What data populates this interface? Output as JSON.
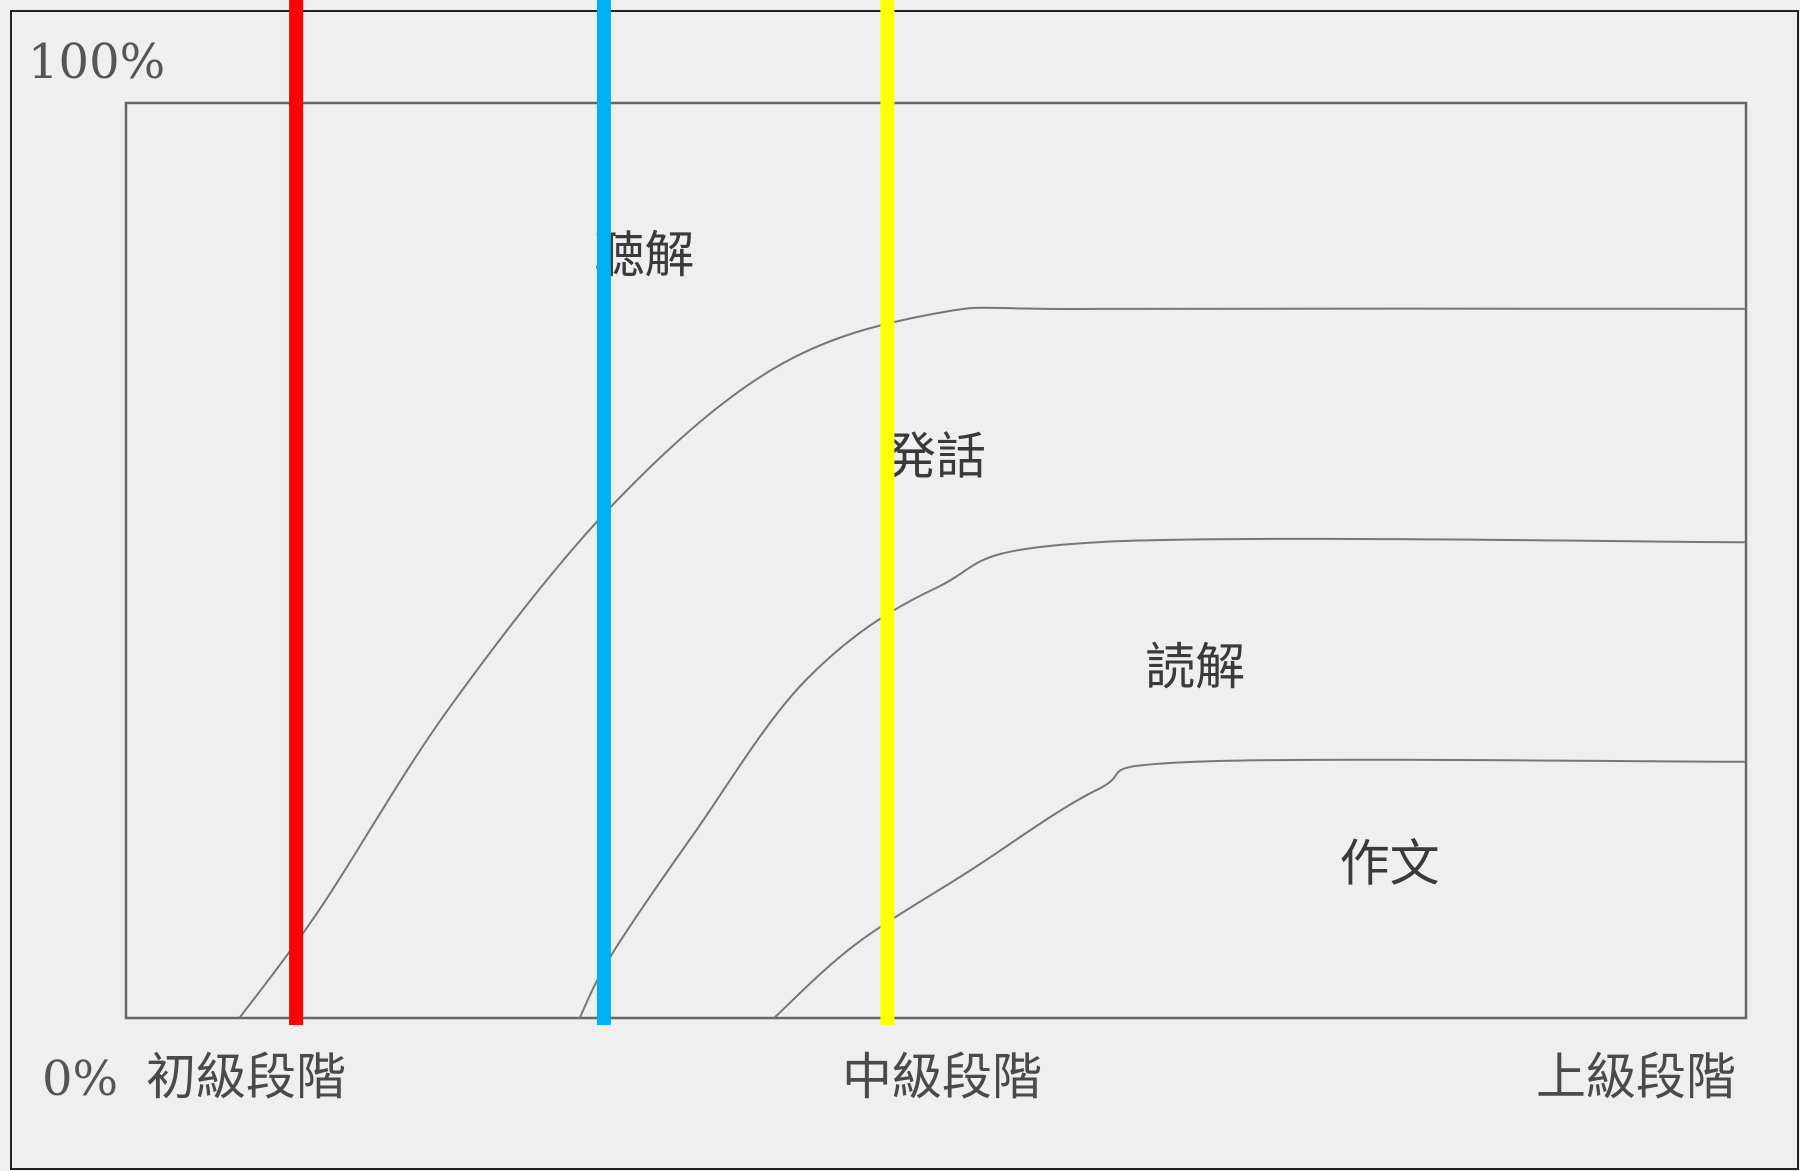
{
  "chart_data": {
    "type": "area",
    "x_range": [
      0,
      100
    ],
    "y_range": [
      0,
      100
    ],
    "y_tick_labels": [
      {
        "label": "0%",
        "value": 0
      },
      {
        "label": "100%",
        "value": 100
      }
    ],
    "x_tick_labels": [
      {
        "label": "初級段階",
        "value": 7
      },
      {
        "label": "中級段階",
        "value": 50
      },
      {
        "label": "上級段階",
        "value": 93
      }
    ],
    "series": [
      {
        "name": "聴解",
        "upper": 100
      },
      {
        "name": "発話",
        "upper_curve": [
          [
            7,
            0
          ],
          [
            12,
            12
          ],
          [
            20,
            34
          ],
          [
            30,
            56
          ],
          [
            40,
            71
          ],
          [
            50,
            77
          ],
          [
            60,
            77.5
          ],
          [
            100,
            77.5
          ]
        ]
      },
      {
        "name": "読解",
        "upper_curve": [
          [
            28,
            0
          ],
          [
            30,
            7
          ],
          [
            35,
            20
          ],
          [
            42,
            37
          ],
          [
            50,
            47
          ],
          [
            60,
            52
          ],
          [
            100,
            52
          ]
        ]
      },
      {
        "name": "作文",
        "upper_curve": [
          [
            40,
            0
          ],
          [
            45,
            8
          ],
          [
            52,
            16
          ],
          [
            60,
            25
          ],
          [
            66,
            28
          ],
          [
            100,
            28
          ]
        ]
      }
    ],
    "region_labels": [
      {
        "text": "聴解",
        "x": 32,
        "y": 83
      },
      {
        "text": "発話",
        "x": 50,
        "y": 61
      },
      {
        "text": "読解",
        "x": 66,
        "y": 38
      },
      {
        "text": "作文",
        "x": 78,
        "y": 16.5
      }
    ],
    "markers": [
      {
        "color": "#ff0000",
        "x": 10.5
      },
      {
        "color": "#00b0f0",
        "x": 29.5
      },
      {
        "color": "#ffff00",
        "x": 47
      }
    ],
    "line_color": "#777777",
    "frame_color": "#666666"
  }
}
